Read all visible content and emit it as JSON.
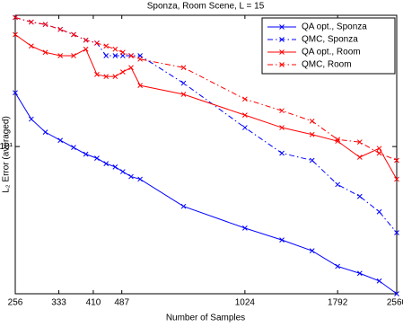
{
  "chart_data": {
    "type": "line",
    "title": "Sponza, Room Scene, L = 15",
    "x_label": "Number of Samples",
    "y_label": "L₂ Error (averaged)",
    "x": [
      256,
      282,
      307,
      336,
      364,
      392,
      419,
      443,
      468,
      490,
      515,
      544,
      707,
      1024,
      1280,
      1536,
      1792,
      2048,
      2304,
      2560
    ],
    "series": [
      {
        "name": "QA opt., Sponza",
        "color": "#0000ff",
        "dash": "solid",
        "values": [
          18.0,
          13.5,
          11.7,
          10.7,
          9.9,
          9.2,
          8.8,
          8.3,
          8.0,
          7.6,
          7.2,
          7.0,
          5.2,
          4.1,
          3.6,
          3.2,
          2.7,
          2.5,
          2.3,
          2.0
        ]
      },
      {
        "name": "QMC, Sponza",
        "color": "#0000ff",
        "dash": "dashdot",
        "values": [
          41,
          39,
          38,
          36,
          34,
          32,
          31,
          27,
          27,
          27,
          27,
          27,
          20,
          12.3,
          9.3,
          8.6,
          6.6,
          5.8,
          4.9,
          3.9
        ]
      },
      {
        "name": "QA opt., Room",
        "color": "#ff0000",
        "dash": "solid",
        "values": [
          34,
          30,
          28,
          27,
          27,
          29,
          22,
          21.5,
          21.5,
          22.6,
          23.7,
          19.5,
          17.7,
          14.1,
          12.3,
          11.4,
          10.6,
          8.9,
          9.8,
          7.0
        ]
      },
      {
        "name": "QMC, Room",
        "color": "#ff0000",
        "dash": "dashdot",
        "values": [
          41,
          39,
          38,
          36,
          34,
          32,
          31,
          30,
          29,
          28,
          27,
          26,
          23.7,
          16.8,
          14.8,
          13.2,
          10.8,
          10.5,
          9.3,
          8.6
        ]
      }
    ],
    "xscale": "log",
    "yscale": "log",
    "xlim": [
      256,
      2560
    ],
    "xticks": [
      256,
      333,
      410,
      487,
      1024,
      1792,
      2560
    ],
    "ylim": [
      2,
      42
    ],
    "yticks": [
      {
        "value": 10,
        "label": "10¹"
      }
    ],
    "legend": "upper right"
  }
}
